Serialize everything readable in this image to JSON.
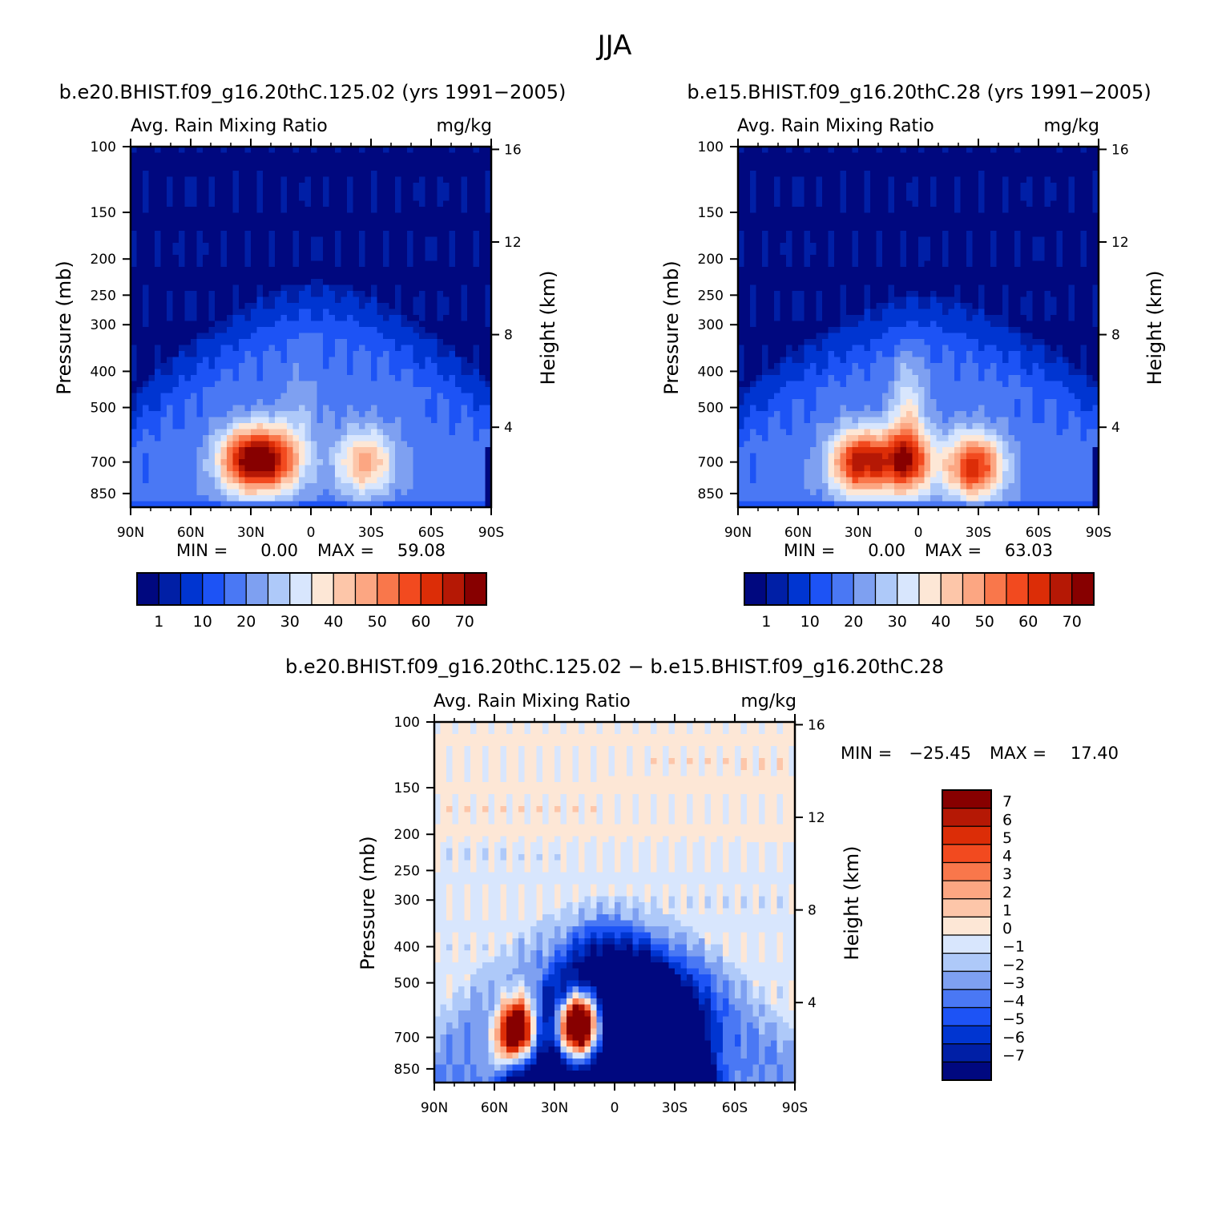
{
  "figure": {
    "title": "JJA"
  },
  "chart_data": [
    {
      "type": "heatmap",
      "title": "b.e20.BHIST.f09_g16.20thC.125.02 (yrs 1991−2005)",
      "subtitle_left": "Avg. Rain Mixing Ratio",
      "subtitle_right": "mg/kg",
      "ylabel": "Pressure (mb)",
      "ylabel_right": "Height (km)",
      "x_ticks": [
        "90N",
        "60N",
        "30N",
        "0",
        "30S",
        "60S",
        "90S"
      ],
      "y_ticks": [
        "100",
        "150",
        "200",
        "250",
        "300",
        "400",
        "500",
        "700",
        "850"
      ],
      "y_ticks_right": [
        "16",
        "12",
        "8",
        "4"
      ],
      "ylim": [
        925,
        100
      ],
      "xlim": [
        90,
        -90
      ],
      "stats": {
        "min_label": "MIN =",
        "min_value": "0.00",
        "max_label": "MAX =",
        "max_value": "59.08"
      },
      "colorbar_labels": [
        "1",
        "10",
        "20",
        "30",
        "40",
        "50",
        "60",
        "70"
      ],
      "features": {
        "max_height_hpa": 230,
        "cores": [
          {
            "lat": 33,
            "p": 690,
            "value": 59.08
          },
          {
            "lat": 18,
            "p": 690,
            "value": 55
          },
          {
            "lat": -27,
            "p": 700,
            "value": 45
          }
        ]
      }
    },
    {
      "type": "heatmap",
      "title": "b.e15.BHIST.f09_g16.20thC.28 (yrs 1991−2005)",
      "subtitle_left": "Avg. Rain Mixing Ratio",
      "subtitle_right": "mg/kg",
      "ylabel": "Pressure (mb)",
      "ylabel_right": "Height (km)",
      "x_ticks": [
        "90N",
        "60N",
        "30N",
        "0",
        "30S",
        "60S",
        "90S"
      ],
      "y_ticks": [
        "100",
        "150",
        "200",
        "250",
        "300",
        "400",
        "500",
        "700",
        "850"
      ],
      "y_ticks_right": [
        "16",
        "12",
        "8",
        "4"
      ],
      "ylim": [
        925,
        100
      ],
      "xlim": [
        90,
        -90
      ],
      "stats": {
        "min_label": "MIN =",
        "min_value": "0.00",
        "max_label": "MAX =",
        "max_value": "63.03"
      },
      "colorbar_labels": [
        "1",
        "10",
        "20",
        "30",
        "40",
        "50",
        "60",
        "70"
      ],
      "features": {
        "max_height_hpa": 250,
        "cores": [
          {
            "lat": 30,
            "p": 700,
            "value": 63.03
          },
          {
            "lat": 7,
            "p": 700,
            "value": 60
          },
          {
            "lat": -28,
            "p": 720,
            "value": 62
          }
        ]
      }
    },
    {
      "type": "heatmap",
      "title": "b.e20.BHIST.f09_g16.20thC.125.02 − b.e15.BHIST.f09_g16.20thC.28",
      "subtitle_left": "Avg. Rain Mixing Ratio",
      "subtitle_right": "mg/kg",
      "ylabel": "Pressure (mb)",
      "ylabel_right": "Height (km)",
      "x_ticks": [
        "90N",
        "60N",
        "30N",
        "0",
        "30S",
        "60S",
        "90S"
      ],
      "y_ticks": [
        "100",
        "150",
        "200",
        "250",
        "300",
        "400",
        "500",
        "700",
        "850"
      ],
      "y_ticks_right": [
        "16",
        "12",
        "8",
        "4"
      ],
      "ylim": [
        925,
        100
      ],
      "xlim": [
        90,
        -90
      ],
      "stats": {
        "min_label": "MIN =",
        "min_value": "−25.45",
        "max_label": "MAX =",
        "max_value": "17.40"
      },
      "colorbar_labels": [
        "7",
        "6",
        "5",
        "4",
        "3",
        "2",
        "1",
        "0",
        "−1",
        "−2",
        "−3",
        "−4",
        "−5",
        "−6",
        "−7"
      ],
      "features": {
        "positive_cores": [
          {
            "lat": 48,
            "p": 680,
            "value": 10
          },
          {
            "lat": 18,
            "p": 650,
            "value": 17.4
          }
        ],
        "negative_core": {
          "lat": 0,
          "p": 500,
          "value": -25.45
        }
      }
    }
  ],
  "colors": {
    "seq": [
      "#00087f",
      "#001fa6",
      "#0035d1",
      "#1d53f5",
      "#4a78f4",
      "#7ea0f1",
      "#aec9f9",
      "#d8e6fd",
      "#fde7d6",
      "#fdc6a9",
      "#fca682",
      "#f9774b",
      "#f24a1f",
      "#dc2d07",
      "#b51805",
      "#870000"
    ],
    "div": [
      "#00087f",
      "#001fa6",
      "#0035d1",
      "#1d53f5",
      "#4a78f4",
      "#7ea0f1",
      "#aec9f9",
      "#d8e6fd",
      "#fde7d6",
      "#fdc6a9",
      "#fca682",
      "#f9774b",
      "#f24a1f",
      "#dc2d07",
      "#b51805",
      "#870000"
    ]
  }
}
